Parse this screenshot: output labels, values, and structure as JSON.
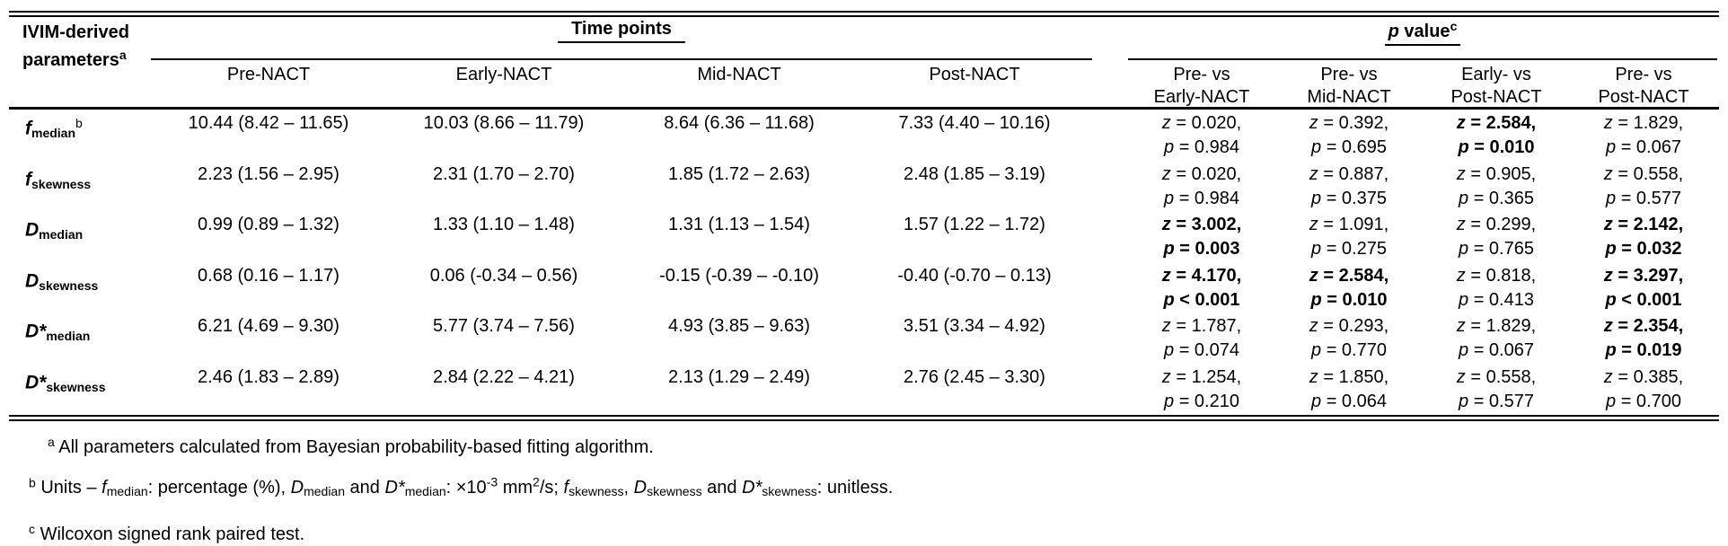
{
  "table": {
    "header": {
      "param_line1": "IVIM-derived",
      "param_line2": "parameters",
      "param_sup": "a",
      "time_group": "Time points",
      "p_group": {
        "it": "p",
        "rest": " value",
        "sup": "c"
      },
      "time_cols": [
        "Pre-NACT",
        "Early-NACT",
        "Mid-NACT",
        "Post-NACT"
      ],
      "p_cols": [
        {
          "l1": "Pre- vs",
          "l2": "Early-NACT"
        },
        {
          "l1": "Pre- vs",
          "l2": "Mid-NACT"
        },
        {
          "l1": "Early- vs",
          "l2": "Post-NACT"
        },
        {
          "l1": "Pre- vs",
          "l2": "Post-NACT"
        }
      ]
    },
    "rows": [
      {
        "param": {
          "base": "f",
          "sub": "median",
          "sup": "b"
        },
        "values": [
          "10.44 (8.42 – 11.65)",
          "10.03 (8.66 – 11.79)",
          "8.64 (6.36 – 11.68)",
          "7.33 (4.40 – 10.16)"
        ],
        "pvals": [
          {
            "z": "z = 0.020,",
            "p": "p = 0.984",
            "bold": false
          },
          {
            "z": "z = 0.392,",
            "p": "p = 0.695",
            "bold": false
          },
          {
            "z": "z = 2.584,",
            "p": "p = 0.010",
            "bold": true
          },
          {
            "z": "z = 1.829,",
            "p": "p = 0.067",
            "bold": false
          }
        ]
      },
      {
        "param": {
          "base": "f",
          "sub": "skewness",
          "sup": ""
        },
        "values": [
          "2.23 (1.56 – 2.95)",
          "2.31 (1.70 – 2.70)",
          "1.85 (1.72 – 2.63)",
          "2.48 (1.85 – 3.19)"
        ],
        "pvals": [
          {
            "z": "z = 0.020,",
            "p": "p = 0.984",
            "bold": false
          },
          {
            "z": "z = 0.887,",
            "p": "p = 0.375",
            "bold": false
          },
          {
            "z": "z = 0.905,",
            "p": "p = 0.365",
            "bold": false
          },
          {
            "z": "z = 0.558,",
            "p": "p = 0.577",
            "bold": false
          }
        ]
      },
      {
        "param": {
          "base": "D",
          "sub": "median",
          "sup": ""
        },
        "values": [
          "0.99 (0.89 – 1.32)",
          "1.33 (1.10 – 1.48)",
          "1.31 (1.13 – 1.54)",
          "1.57 (1.22 – 1.72)"
        ],
        "pvals": [
          {
            "z": "z = 3.002,",
            "p": "p = 0.003",
            "bold": true
          },
          {
            "z": "z = 1.091,",
            "p": "p = 0.275",
            "bold": false
          },
          {
            "z": "z = 0.299,",
            "p": "p = 0.765",
            "bold": false
          },
          {
            "z": "z = 2.142,",
            "p": "p = 0.032",
            "bold": true
          }
        ]
      },
      {
        "param": {
          "base": "D",
          "sub": "skewness",
          "sup": ""
        },
        "values": [
          "0.68 (0.16 – 1.17)",
          "0.06 (-0.34 – 0.56)",
          "-0.15 (-0.39 – -0.10)",
          "-0.40 (-0.70 – 0.13)"
        ],
        "pvals": [
          {
            "z": "z = 4.170,",
            "p": "p < 0.001",
            "bold": true
          },
          {
            "z": "z = 2.584,",
            "p": "p = 0.010",
            "bold": true
          },
          {
            "z": "z = 0.818,",
            "p": "p = 0.413",
            "bold": false
          },
          {
            "z": "z = 3.297,",
            "p": "p < 0.001",
            "bold": true
          }
        ]
      },
      {
        "param": {
          "base": "D*",
          "sub": "median",
          "sup": ""
        },
        "values": [
          "6.21 (4.69 – 9.30)",
          "5.77 (3.74 – 7.56)",
          "4.93 (3.85 – 9.63)",
          "3.51 (3.34 – 4.92)"
        ],
        "pvals": [
          {
            "z": "z = 1.787,",
            "p": "p = 0.074",
            "bold": false
          },
          {
            "z": "z = 0.293,",
            "p": "p = 0.770",
            "bold": false
          },
          {
            "z": "z = 1.829,",
            "p": "p = 0.067",
            "bold": false
          },
          {
            "z": "z = 2.354,",
            "p": "p = 0.019",
            "bold": true
          }
        ]
      },
      {
        "param": {
          "base": "D*",
          "sub": "skewness",
          "sup": ""
        },
        "values": [
          "2.46 (1.83 – 2.89)",
          "2.84 (2.22 – 4.21)",
          "2.13 (1.29 – 2.49)",
          "2.76 (2.45 – 3.30)"
        ],
        "pvals": [
          {
            "z": "z = 1.254,",
            "p": "p = 0.210",
            "bold": false
          },
          {
            "z": "z = 1.850,",
            "p": "p = 0.064",
            "bold": false
          },
          {
            "z": "z = 0.558,",
            "p": "p = 0.577",
            "bold": false
          },
          {
            "z": "z = 0.385,",
            "p": "p = 0.700",
            "bold": false
          }
        ]
      }
    ]
  },
  "footnotes": {
    "a": {
      "sup": "a",
      "text": "All parameters calculated from Bayesian probability-based fitting algorithm."
    },
    "b": {
      "sup": "b",
      "parts": [
        {
          "t": "Units – "
        },
        {
          "t": "f",
          "s": "it"
        },
        {
          "t": "median",
          "s": "sub"
        },
        {
          "t": ": percentage (%), "
        },
        {
          "t": "D",
          "s": "it"
        },
        {
          "t": "median",
          "s": "sub"
        },
        {
          "t": " and "
        },
        {
          "t": "D*",
          "s": "it"
        },
        {
          "t": "median",
          "s": "sub"
        },
        {
          "t": ": ×10"
        },
        {
          "t": "-3",
          "s": "sup"
        },
        {
          "t": " mm"
        },
        {
          "t": "2",
          "s": "sup"
        },
        {
          "t": "/s; "
        },
        {
          "t": "f",
          "s": "it"
        },
        {
          "t": "skewness",
          "s": "sub"
        },
        {
          "t": ", "
        },
        {
          "t": "D",
          "s": "it"
        },
        {
          "t": "skewness",
          "s": "sub"
        },
        {
          "t": " and "
        },
        {
          "t": "D*",
          "s": "it"
        },
        {
          "t": "skewness",
          "s": "sub"
        },
        {
          "t": ": unitless."
        }
      ]
    },
    "c": {
      "sup": "c",
      "text": "Wilcoxon signed rank paired test."
    }
  },
  "colors": {
    "text": "#000000",
    "background": "#ffffff",
    "rule": "#000000"
  }
}
